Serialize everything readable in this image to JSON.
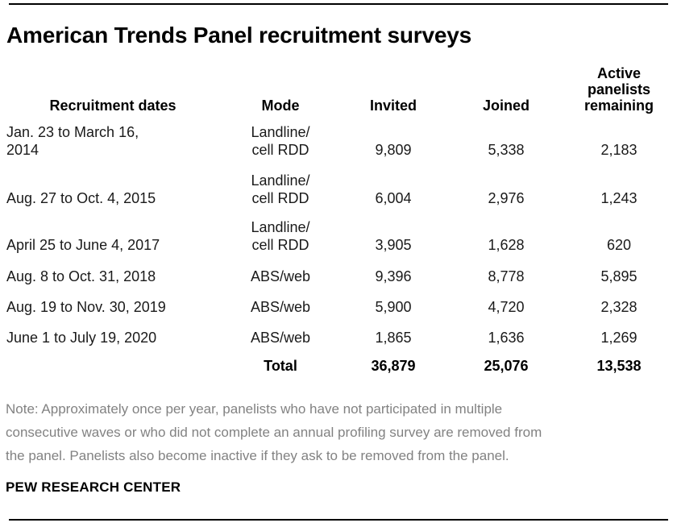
{
  "title": "American Trends Panel recruitment surveys",
  "table": {
    "headers": {
      "dates": "Recruitment dates",
      "mode": "Mode",
      "invited": "Invited",
      "joined": "Joined",
      "remaining": "Active\npanelists\nremaining"
    },
    "rows": [
      {
        "dates": "Jan. 23 to March 16,\n2014",
        "mode": "Landline/\ncell RDD",
        "invited": "9,809",
        "joined": "5,338",
        "remaining": "2,183"
      },
      {
        "dates": "Aug. 27 to Oct. 4, 2015",
        "mode": "Landline/\ncell RDD",
        "invited": "6,004",
        "joined": "2,976",
        "remaining": "1,243"
      },
      {
        "dates": "April 25 to June 4, 2017",
        "mode": "Landline/\ncell RDD",
        "invited": "3,905",
        "joined": "1,628",
        "remaining": "620"
      },
      {
        "dates": "Aug. 8 to Oct. 31, 2018",
        "mode": "ABS/web",
        "invited": "9,396",
        "joined": "8,778",
        "remaining": "5,895"
      },
      {
        "dates": "Aug. 19 to Nov. 30, 2019",
        "mode": "ABS/web",
        "invited": "5,900",
        "joined": "4,720",
        "remaining": "2,328"
      },
      {
        "dates": "June 1 to July 19, 2020",
        "mode": "ABS/web",
        "invited": "1,865",
        "joined": "1,636",
        "remaining": "1,269"
      }
    ],
    "total": {
      "label": "Total",
      "invited": "36,879",
      "joined": "25,076",
      "remaining": "13,538"
    }
  },
  "note": "Note: Approximately once per year, panelists who have not participated in multiple\nconsecutive waves or who did not complete an annual profiling survey are removed from\nthe panel. Panelists also become inactive if they ask to be removed from the panel.",
  "source": "PEW RESEARCH CENTER",
  "colors": {
    "rule": "#000000",
    "title_text": "#000000",
    "body_text": "#1a1a1a",
    "note_text": "#828282"
  },
  "chart_data": {
    "type": "table",
    "title": "American Trends Panel recruitment surveys",
    "columns": [
      "Recruitment dates",
      "Mode",
      "Invited",
      "Joined",
      "Active panelists remaining"
    ],
    "rows": [
      [
        "Jan. 23 to March 16, 2014",
        "Landline/cell RDD",
        9809,
        5338,
        2183
      ],
      [
        "Aug. 27 to Oct. 4, 2015",
        "Landline/cell RDD",
        6004,
        2976,
        1243
      ],
      [
        "April 25 to June 4, 2017",
        "Landline/cell RDD",
        3905,
        1628,
        620
      ],
      [
        "Aug. 8 to Oct. 31, 2018",
        "ABS/web",
        9396,
        8778,
        5895
      ],
      [
        "Aug. 19 to Nov. 30, 2019",
        "ABS/web",
        5900,
        4720,
        2328
      ],
      [
        "June 1 to July 19, 2020",
        "ABS/web",
        1865,
        1636,
        1269
      ]
    ],
    "totals": {
      "label": "Total",
      "invited": 36879,
      "joined": 25076,
      "remaining": 13538
    },
    "layout": {
      "grid": false,
      "number_alignment": "center",
      "notes_position": "below-table"
    }
  }
}
